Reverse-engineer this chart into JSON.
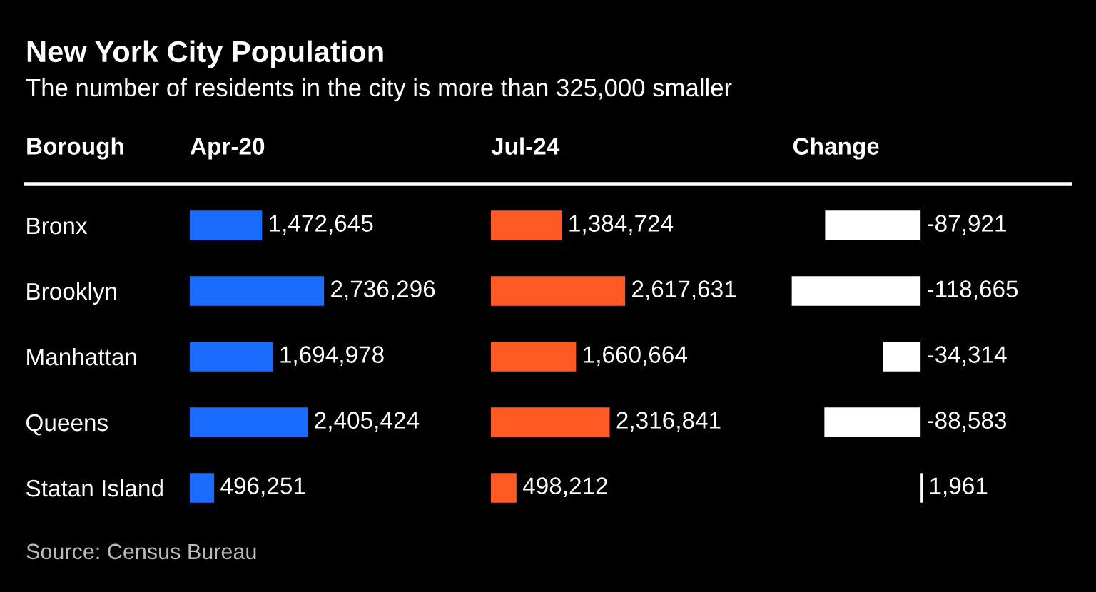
{
  "chart_data": [
    {
      "type": "bar",
      "orientation": "horizontal",
      "title": "New York City Population",
      "subtitle": "The number of residents in the city is more than 325,000 smaller",
      "ylabel": "Borough",
      "categories": [
        "Bronx",
        "Brooklyn",
        "Manhattan",
        "Queens",
        "Statan Island"
      ],
      "series": [
        {
          "name": "Apr-20",
          "color": "#1a6cff",
          "values": [
            1472645,
            2736296,
            1694978,
            2405424,
            496251
          ],
          "value_labels": [
            "1,472,645",
            "2,736,296",
            "1,694,978",
            "2,405,424",
            "496,251"
          ]
        }
      ],
      "annotations": [
        "Source: Census Bureau"
      ]
    },
    {
      "type": "bar",
      "orientation": "horizontal",
      "series": [
        {
          "name": "Jul-24",
          "color": "#ff5a24",
          "values": [
            1384724,
            2617631,
            1660664,
            2316841,
            498212
          ],
          "value_labels": [
            "1,384,724",
            "2,617,631",
            "1,660,664",
            "2,316,841",
            "498,212"
          ]
        }
      ]
    },
    {
      "type": "bar",
      "orientation": "horizontal",
      "series": [
        {
          "name": "Change",
          "color": "#ffffff",
          "values": [
            -87921,
            -118665,
            -34314,
            -88583,
            1961
          ],
          "value_labels": [
            "-87,921",
            "-118,665",
            "-34,314",
            "-88,583",
            "1,961"
          ]
        }
      ]
    }
  ]
}
